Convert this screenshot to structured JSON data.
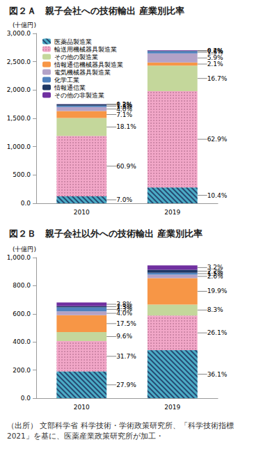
{
  "chart_data": [
    {
      "type": "bar",
      "title": "図２Ａ　親子会社への技術輸出 産業別比率",
      "y_label": "(十億円)",
      "categories": [
        "2010",
        "2019"
      ],
      "stacked": true,
      "data_labels": true,
      "grid": false,
      "legend": "upper left",
      "ylim": [
        0,
        3000
      ],
      "yticks": [
        {
          "value": 0,
          "label": "0.0"
        },
        {
          "value": 500,
          "label": "500.0"
        },
        {
          "value": 1000,
          "label": "1,000.0"
        },
        {
          "value": 1500,
          "label": "1,500.0"
        },
        {
          "value": 2000,
          "label": "2,000.0"
        },
        {
          "value": 2500,
          "label": "2,500.0"
        },
        {
          "value": 3000,
          "label": "3,000.0"
        }
      ],
      "series": [
        {
          "name": "医薬品製造業",
          "color": "#4bacc6",
          "values": [
            122.5,
            281
          ],
          "share_labels": [
            "7.0%",
            "10.4%"
          ]
        },
        {
          "name": "輸送用機械器具製造業",
          "color": "#f2a7c8",
          "values": [
            1066,
            1698
          ],
          "share_labels": [
            "60.9%",
            "62.9%"
          ]
        },
        {
          "name": "その他の製造業",
          "color": "#c4d79b",
          "values": [
            317,
            451
          ],
          "share_labels": [
            "18.1%",
            "16.7%"
          ]
        },
        {
          "name": "情報通信機械器具製造業",
          "color": "#f79646",
          "values": [
            124,
            57
          ],
          "share_labels": [
            "7.1%",
            "2.1%"
          ]
        },
        {
          "name": "電気機械器具製造業",
          "color": "#b3a2c7",
          "values": [
            70,
            159
          ],
          "share_labels": [
            "4.0%",
            "5.9%"
          ]
        },
        {
          "name": "化学工業",
          "color": "#4f81bd",
          "values": [
            26,
            40.5
          ],
          "share_labels": [
            "1.5%",
            "1.5%"
          ]
        },
        {
          "name": "情報通信業",
          "color": "#1f3864",
          "values": [
            23,
            5.4
          ],
          "share_labels": [
            "1.3%",
            "0.2%"
          ]
        },
        {
          "name": "その他の非製造業",
          "color": "#7030a0",
          "values": [
            3.5,
            10.8
          ],
          "share_labels": [
            "0.2%",
            "0.4%"
          ]
        }
      ]
    },
    {
      "type": "bar",
      "title": "図２Ｂ　親子会社以外への技術輸出 産業別比率",
      "y_label": "(十億円)",
      "categories": [
        "2010",
        "2019"
      ],
      "stacked": true,
      "data_labels": true,
      "grid": false,
      "ylim": [
        0,
        1000
      ],
      "yticks": [
        {
          "value": 0,
          "label": "0.0"
        },
        {
          "value": 200,
          "label": "200.0"
        },
        {
          "value": 400,
          "label": "400.0"
        },
        {
          "value": 600,
          "label": "600.0"
        },
        {
          "value": 800,
          "label": "800.0"
        },
        {
          "value": 1000,
          "label": "1,000.0"
        }
      ],
      "series": [
        {
          "name": "医薬品製造業",
          "color": "#4bacc6",
          "values": [
            190,
            341
          ],
          "share_labels": [
            "27.9%",
            "36.1%"
          ]
        },
        {
          "name": "輸送用機械器具製造業",
          "color": "#f2a7c8",
          "values": [
            215.6,
            246.6
          ],
          "share_labels": [
            "31.7%",
            "26.1%"
          ]
        },
        {
          "name": "その他の製造業",
          "color": "#c4d79b",
          "values": [
            65.3,
            78.4
          ],
          "share_labels": [
            "9.6%",
            "8.3%"
          ]
        },
        {
          "name": "情報通信機械器具製造業",
          "color": "#f79646",
          "values": [
            119,
            188
          ],
          "share_labels": [
            "17.5%",
            "19.9%"
          ]
        },
        {
          "name": "電気機械器具製造業",
          "color": "#b3a2c7",
          "values": [
            27.2,
            24.6
          ],
          "share_labels": [
            "4.0%",
            "2.6%"
          ]
        },
        {
          "name": "化学工業",
          "color": "#4f81bd",
          "values": [
            29.2,
            14.2
          ],
          "share_labels": [
            "4.3%",
            "1.5%"
          ]
        },
        {
          "name": "情報通信業",
          "color": "#1f3864",
          "values": [
            8.8,
            20.8
          ],
          "share_labels": [
            "1.3%",
            "2.2%"
          ]
        },
        {
          "name": "その他の非製造業",
          "color": "#7030a0",
          "values": [
            25.8,
            30.2
          ],
          "share_labels": [
            "3.8%",
            "3.2%"
          ]
        }
      ]
    }
  ],
  "source": "（出所） 文部科学省 科学技術・学術政策研究所、「科学技術指標2021」を基に、医薬産業政策研究所が加工・"
}
